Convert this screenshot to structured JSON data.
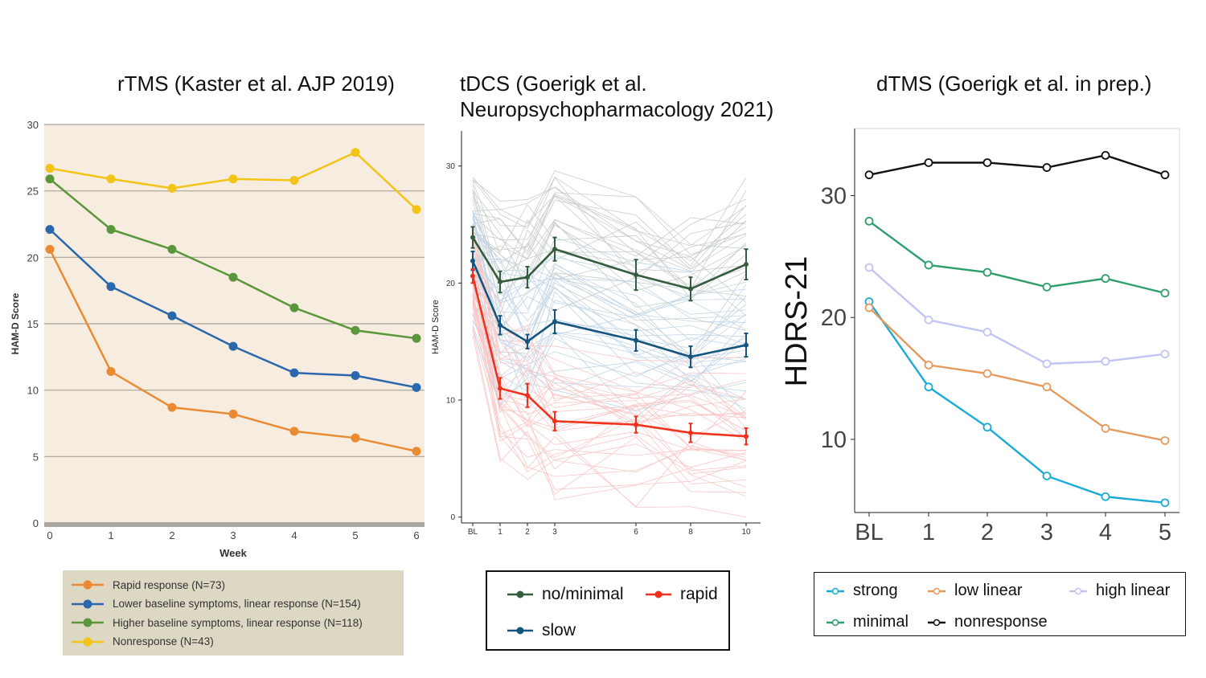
{
  "titles": {
    "rtms": "rTMS (Kaster et al. AJP 2019)",
    "tdcs_line1": "tDCS (Goerigk et al.",
    "tdcs_line2": "Neuropsychopharmacology 2021)",
    "dtms": "dTMS (Goerigk et al. in prep.)"
  },
  "chart_data": [
    {
      "type": "line",
      "title": "rTMS (Kaster et al. AJP 2019)",
      "xlabel": "Week",
      "ylabel": "HAM-D Score",
      "x": [
        0,
        1,
        2,
        3,
        4,
        5,
        6
      ],
      "x_ticks": [
        "0",
        "1",
        "2",
        "3",
        "4",
        "5",
        "6"
      ],
      "y_ticks": [
        "0",
        "5",
        "10",
        "15",
        "20",
        "25",
        "30"
      ],
      "xlim": [
        0,
        6
      ],
      "ylim": [
        0,
        30
      ],
      "grid": "horizontal",
      "background": "#f6ecdf",
      "legend_position": "bottom",
      "series": [
        {
          "name": "Rapid response (N=73)",
          "color": "#ea8a33",
          "values": [
            20.6,
            11.4,
            8.7,
            8.2,
            6.9,
            6.4,
            5.4
          ]
        },
        {
          "name": "Lower baseline symptoms, linear response (N=154)",
          "color": "#2a67ad",
          "values": [
            22.1,
            17.8,
            15.6,
            13.3,
            11.3,
            11.1,
            10.2
          ]
        },
        {
          "name": "Higher baseline symptoms, linear response (N=118)",
          "color": "#5a963a",
          "values": [
            25.9,
            22.1,
            20.6,
            18.5,
            16.2,
            14.5,
            13.9
          ]
        },
        {
          "name": "Nonresponse (N=43)",
          "color": "#f3c417",
          "values": [
            26.7,
            25.9,
            25.2,
            25.9,
            25.8,
            27.9,
            23.6
          ]
        }
      ]
    },
    {
      "type": "line",
      "title": "tDCS (Goerigk et al. Neuropsychopharmacology 2021)",
      "xlabel": "",
      "ylabel": "HAM-D Score",
      "x_ticks": [
        "BL",
        "1",
        "2",
        "3",
        "6",
        "8",
        "10"
      ],
      "y_ticks": [
        "0",
        "10",
        "20",
        "30"
      ],
      "ylim": [
        -0.5,
        33
      ],
      "legend_position": "bottom",
      "note": "individual patient trajectories drawn faintly behind group means with error bars",
      "series": [
        {
          "name": "no/minimal",
          "color": "#355c3f",
          "values": [
            23.9,
            20.1,
            20.5,
            22.9,
            20.7,
            19.5,
            21.6
          ],
          "err": [
            0.9,
            0.9,
            0.9,
            1.0,
            1.3,
            1.0,
            1.3
          ]
        },
        {
          "name": "slow",
          "color": "#15547d",
          "values": [
            21.9,
            16.4,
            15.0,
            16.7,
            15.1,
            13.7,
            14.7
          ],
          "err": [
            0.8,
            0.8,
            0.6,
            1.0,
            0.9,
            0.9,
            1.0
          ]
        },
        {
          "name": "rapid",
          "color": "#f0311b",
          "values": [
            20.6,
            11.0,
            10.4,
            8.2,
            7.9,
            7.2,
            6.9
          ],
          "err": [
            0.6,
            0.9,
            1.0,
            0.8,
            0.7,
            0.8,
            0.7
          ]
        }
      ]
    },
    {
      "type": "line",
      "title": "dTMS (Goerigk et al. in prep.)",
      "xlabel": "",
      "ylabel": "HDRS-21",
      "x_ticks": [
        "BL",
        "1",
        "2",
        "3",
        "4",
        "5"
      ],
      "y_ticks": [
        "10",
        "20",
        "30"
      ],
      "ylim": [
        4,
        35.5
      ],
      "legend_position": "bottom",
      "series": [
        {
          "name": "strong",
          "color": "#1aaad6",
          "values": [
            21.3,
            14.3,
            11.0,
            7.0,
            5.3,
            4.8
          ]
        },
        {
          "name": "low linear",
          "color": "#e49a5d",
          "values": [
            20.8,
            16.1,
            15.4,
            14.3,
            10.9,
            9.9
          ]
        },
        {
          "name": "high linear",
          "color": "#c2c4f3",
          "values": [
            24.1,
            19.8,
            18.8,
            16.2,
            16.4,
            17.0
          ]
        },
        {
          "name": "minimal",
          "color": "#2d9e6b",
          "values": [
            27.9,
            24.3,
            23.7,
            22.5,
            23.2,
            22.0
          ]
        },
        {
          "name": "nonresponse",
          "color": "#111111",
          "values": [
            31.7,
            32.7,
            32.7,
            32.3,
            33.3,
            31.7
          ]
        }
      ]
    }
  ]
}
